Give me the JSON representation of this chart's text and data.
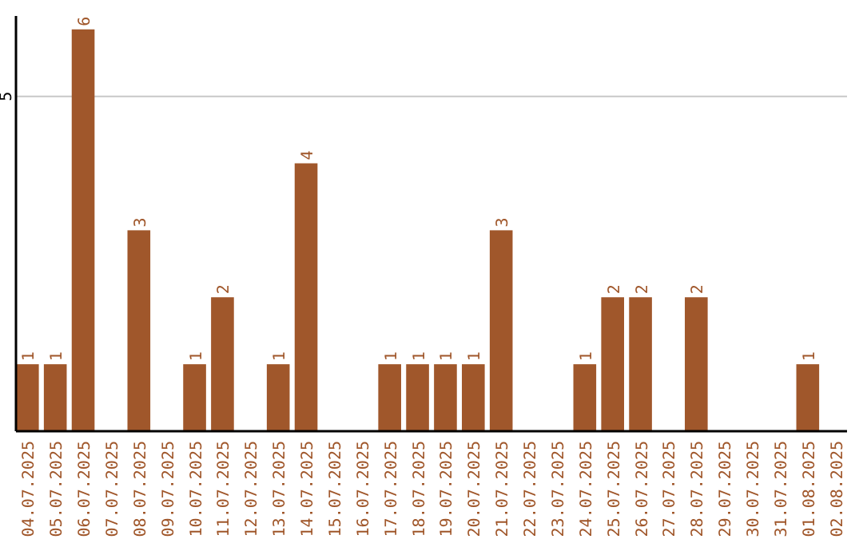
{
  "chart_data": {
    "type": "bar",
    "categories": [
      "04.07.2025",
      "05.07.2025",
      "06.07.2025",
      "07.07.2025",
      "08.07.2025",
      "09.07.2025",
      "10.07.2025",
      "11.07.2025",
      "12.07.2025",
      "13.07.2025",
      "14.07.2025",
      "15.07.2025",
      "16.07.2025",
      "17.07.2025",
      "18.07.2025",
      "19.07.2025",
      "20.07.2025",
      "21.07.2025",
      "22.07.2025",
      "23.07.2025",
      "24.07.2025",
      "25.07.2025",
      "26.07.2025",
      "27.07.2025",
      "28.07.2025",
      "29.07.2025",
      "30.07.2025",
      "31.07.2025",
      "01.08.2025",
      "02.08.2025"
    ],
    "values": [
      1,
      1,
      6,
      0,
      3,
      0,
      1,
      2,
      0,
      1,
      4,
      0,
      0,
      1,
      1,
      1,
      1,
      3,
      0,
      0,
      1,
      2,
      2,
      0,
      2,
      0,
      0,
      0,
      1,
      0
    ],
    "value_labels": [
      "1",
      "1",
      "6",
      null,
      "3",
      null,
      "1",
      "2",
      null,
      "1",
      "4",
      null,
      null,
      "1",
      "1",
      "1",
      "1",
      "3",
      null,
      null,
      "1",
      "2",
      "2",
      null,
      "2",
      null,
      null,
      null,
      "1",
      null
    ],
    "color": "#a0572b",
    "ylim": [
      0,
      6.2
    ],
    "yticks": [
      5
    ],
    "grid": "y"
  }
}
